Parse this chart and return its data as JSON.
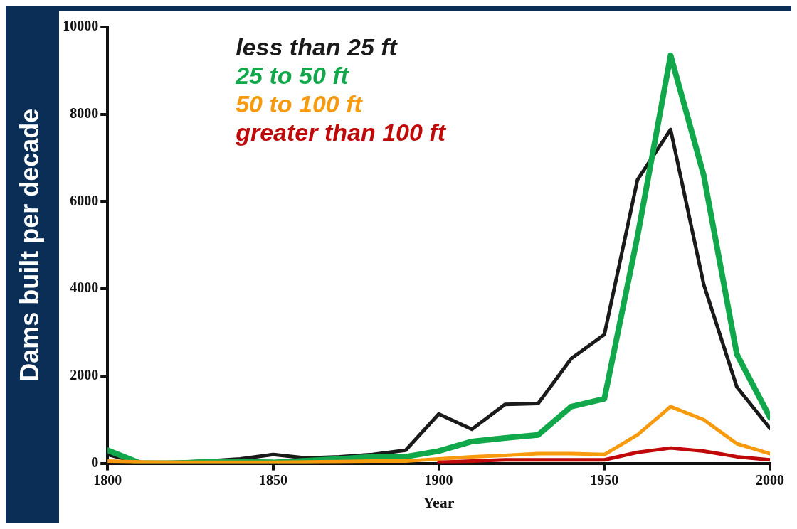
{
  "chart_data": {
    "type": "line",
    "xlabel": "Year",
    "ylabel": "Dams built per decade",
    "x": [
      1800,
      1810,
      1820,
      1830,
      1840,
      1850,
      1860,
      1870,
      1880,
      1890,
      1900,
      1910,
      1920,
      1930,
      1940,
      1950,
      1960,
      1970,
      1980,
      1990,
      2000
    ],
    "xlim": [
      1800,
      2000
    ],
    "xticks": [
      1800,
      1850,
      1900,
      1950,
      2000
    ],
    "ylim": [
      0,
      10000
    ],
    "yticks": [
      0,
      2000,
      4000,
      6000,
      8000,
      10000
    ],
    "grid": false,
    "legend": "top left",
    "marker": "none",
    "line_style": "solid",
    "series": [
      {
        "name": "less than 25 ft",
        "color": "#1a1a1a",
        "values": [
          200,
          0,
          20,
          50,
          100,
          200,
          120,
          150,
          200,
          300,
          1130,
          780,
          1350,
          1370,
          2400,
          2950,
          6500,
          7650,
          4100,
          1750,
          800
        ]
      },
      {
        "name": "25 to 50 ft",
        "color": "#10a84a",
        "values": [
          300,
          0,
          0,
          30,
          30,
          20,
          60,
          100,
          150,
          150,
          280,
          500,
          580,
          650,
          1300,
          1480,
          5200,
          9350,
          6600,
          2500,
          1050
        ]
      },
      {
        "name": "50 to 100 ft",
        "color": "#f79a0d",
        "values": [
          50,
          30,
          20,
          20,
          20,
          20,
          30,
          40,
          50,
          50,
          100,
          150,
          180,
          220,
          220,
          200,
          650,
          1300,
          1000,
          450,
          220
        ]
      },
      {
        "name": "greater than 100 ft",
        "color": "#c00a0a",
        "values": [
          null,
          null,
          null,
          null,
          null,
          null,
          null,
          null,
          null,
          null,
          20,
          50,
          80,
          80,
          80,
          80,
          250,
          350,
          280,
          150,
          80
        ]
      }
    ]
  }
}
